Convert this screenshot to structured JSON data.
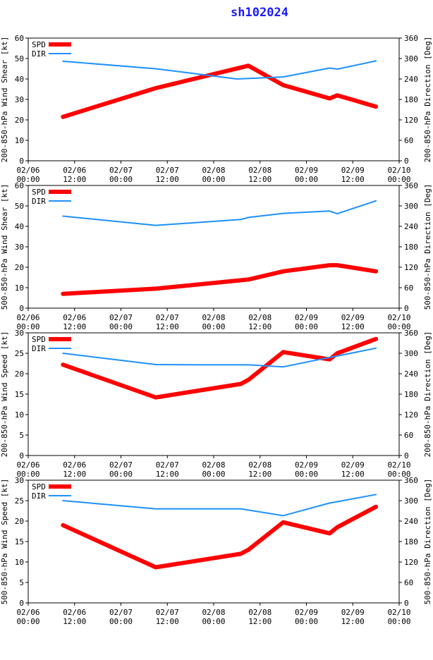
{
  "title": "sh102024",
  "colors": {
    "spd": "#ff0000",
    "dir": "#1e90ff",
    "axis": "#000000",
    "title": "#1a1aff"
  },
  "chart_data": [
    {
      "type": "line",
      "title": "sh102024",
      "ylabel_left": "200-850-hPa Wind Shear [kt]",
      "ylabel_right": "200-850-hPa Direction [Deg]",
      "ylim_left": [
        0,
        60
      ],
      "yticks_left": [
        0,
        10,
        20,
        30,
        40,
        50,
        60
      ],
      "ylim_right": [
        0,
        360
      ],
      "yticks_right": [
        0,
        60,
        120,
        180,
        240,
        300,
        360
      ],
      "xlim": [
        0,
        96
      ],
      "xticks": [
        0,
        12,
        24,
        36,
        48,
        60,
        72,
        84,
        96
      ],
      "xtick_labels": [
        [
          "02/06",
          "00:00"
        ],
        [
          "02/06",
          "12:00"
        ],
        [
          "02/07",
          "00:00"
        ],
        [
          "02/07",
          "12:00"
        ],
        [
          "02/08",
          "00:00"
        ],
        [
          "02/08",
          "12:00"
        ],
        [
          "02/09",
          "00:00"
        ],
        [
          "02/09",
          "12:00"
        ],
        [
          "02/10",
          "00:00"
        ]
      ],
      "legend": [
        "SPD",
        "DIR"
      ],
      "series": [
        {
          "name": "SPD",
          "axis": "left",
          "x": [
            9,
            33,
            57,
            66,
            78,
            80,
            90
          ],
          "values": [
            21.5,
            35.5,
            46.5,
            37,
            30.5,
            32,
            26.5
          ]
        },
        {
          "name": "DIR",
          "axis": "right",
          "x": [
            9,
            33,
            45,
            54,
            66,
            78,
            80,
            90
          ],
          "values": [
            292,
            270,
            253,
            240,
            246,
            272,
            269,
            293
          ]
        }
      ]
    },
    {
      "type": "line",
      "ylabel_left": "500-850-hPa Wind Shear [kt]",
      "ylabel_right": "500-850-hPa Direction [Deg]",
      "ylim_left": [
        0,
        60
      ],
      "yticks_left": [
        0,
        10,
        20,
        30,
        40,
        50,
        60
      ],
      "ylim_right": [
        0,
        360
      ],
      "yticks_right": [
        0,
        60,
        120,
        180,
        240,
        300,
        360
      ],
      "xlim": [
        0,
        96
      ],
      "xticks": [
        0,
        12,
        24,
        36,
        48,
        60,
        72,
        84,
        96
      ],
      "xtick_labels": [
        [
          "02/06",
          "00:00"
        ],
        [
          "02/06",
          "12:00"
        ],
        [
          "02/07",
          "00:00"
        ],
        [
          "02/07",
          "12:00"
        ],
        [
          "02/08",
          "00:00"
        ],
        [
          "02/08",
          "12:00"
        ],
        [
          "02/09",
          "00:00"
        ],
        [
          "02/09",
          "12:00"
        ],
        [
          "02/10",
          "00:00"
        ]
      ],
      "legend": [
        "SPD",
        "DIR"
      ],
      "series": [
        {
          "name": "SPD",
          "axis": "left",
          "x": [
            9,
            33,
            57,
            66,
            78,
            80,
            90
          ],
          "values": [
            7,
            9.5,
            14,
            18,
            21,
            21,
            18
          ]
        },
        {
          "name": "DIR",
          "axis": "right",
          "x": [
            9,
            33,
            55,
            57,
            66,
            78,
            80,
            90
          ],
          "values": [
            270,
            243,
            260,
            266,
            278,
            285,
            277,
            315
          ]
        }
      ]
    },
    {
      "type": "line",
      "ylabel_left": "200-850-hPa Wind Speed [kt]",
      "ylabel_right": "200-850-hPa Direction [Deg]",
      "ylim_left": [
        0,
        30
      ],
      "yticks_left": [
        0,
        5,
        10,
        15,
        20,
        25,
        30
      ],
      "ylim_right": [
        0,
        360
      ],
      "yticks_right": [
        0,
        60,
        120,
        180,
        240,
        300,
        360
      ],
      "xlim": [
        0,
        96
      ],
      "xticks": [
        0,
        12,
        24,
        36,
        48,
        60,
        72,
        84,
        96
      ],
      "xtick_labels": [
        [
          "02/06",
          "00:00"
        ],
        [
          "02/06",
          "12:00"
        ],
        [
          "02/07",
          "00:00"
        ],
        [
          "02/07",
          "12:00"
        ],
        [
          "02/08",
          "00:00"
        ],
        [
          "02/08",
          "12:00"
        ],
        [
          "02/09",
          "00:00"
        ],
        [
          "02/09",
          "12:00"
        ],
        [
          "02/10",
          "00:00"
        ]
      ],
      "legend": [
        "SPD",
        "DIR"
      ],
      "series": [
        {
          "name": "SPD",
          "axis": "left",
          "x": [
            9,
            33,
            55,
            57,
            66,
            78,
            80,
            90
          ],
          "values": [
            22.2,
            14.2,
            17.5,
            18.5,
            25.3,
            23.5,
            25,
            28.5
          ]
        },
        {
          "name": "DIR",
          "axis": "right",
          "x": [
            9,
            33,
            45,
            57,
            66,
            78,
            80,
            90
          ],
          "values": [
            300,
            267,
            266,
            266,
            260,
            288,
            292,
            315
          ]
        }
      ]
    },
    {
      "type": "line",
      "ylabel_left": "500-850-hPa Wind Speed [kt]",
      "ylabel_right": "500-850-hPa Direction [Deg]",
      "ylim_left": [
        0,
        30
      ],
      "yticks_left": [
        0,
        5,
        10,
        15,
        20,
        25,
        30
      ],
      "ylim_right": [
        0,
        360
      ],
      "yticks_right": [
        0,
        60,
        120,
        180,
        240,
        300,
        360
      ],
      "xlim": [
        0,
        96
      ],
      "xticks": [
        0,
        12,
        24,
        36,
        48,
        60,
        72,
        84,
        96
      ],
      "xtick_labels": [
        [
          "02/06",
          "00:00"
        ],
        [
          "02/06",
          "12:00"
        ],
        [
          "02/07",
          "00:00"
        ],
        [
          "02/07",
          "12:00"
        ],
        [
          "02/08",
          "00:00"
        ],
        [
          "02/08",
          "12:00"
        ],
        [
          "02/09",
          "00:00"
        ],
        [
          "02/09",
          "12:00"
        ],
        [
          "02/10",
          "00:00"
        ]
      ],
      "legend": [
        "SPD",
        "DIR"
      ],
      "series": [
        {
          "name": "SPD",
          "axis": "left",
          "x": [
            9,
            33,
            55,
            57,
            66,
            78,
            80,
            90
          ],
          "values": [
            19,
            8.7,
            12,
            13,
            19.7,
            17,
            18.5,
            23.5
          ]
        },
        {
          "name": "DIR",
          "axis": "right",
          "x": [
            9,
            33,
            45,
            55,
            66,
            78,
            80,
            90
          ],
          "values": [
            300,
            276,
            276,
            276,
            256,
            293,
            297,
            318
          ]
        }
      ]
    }
  ]
}
